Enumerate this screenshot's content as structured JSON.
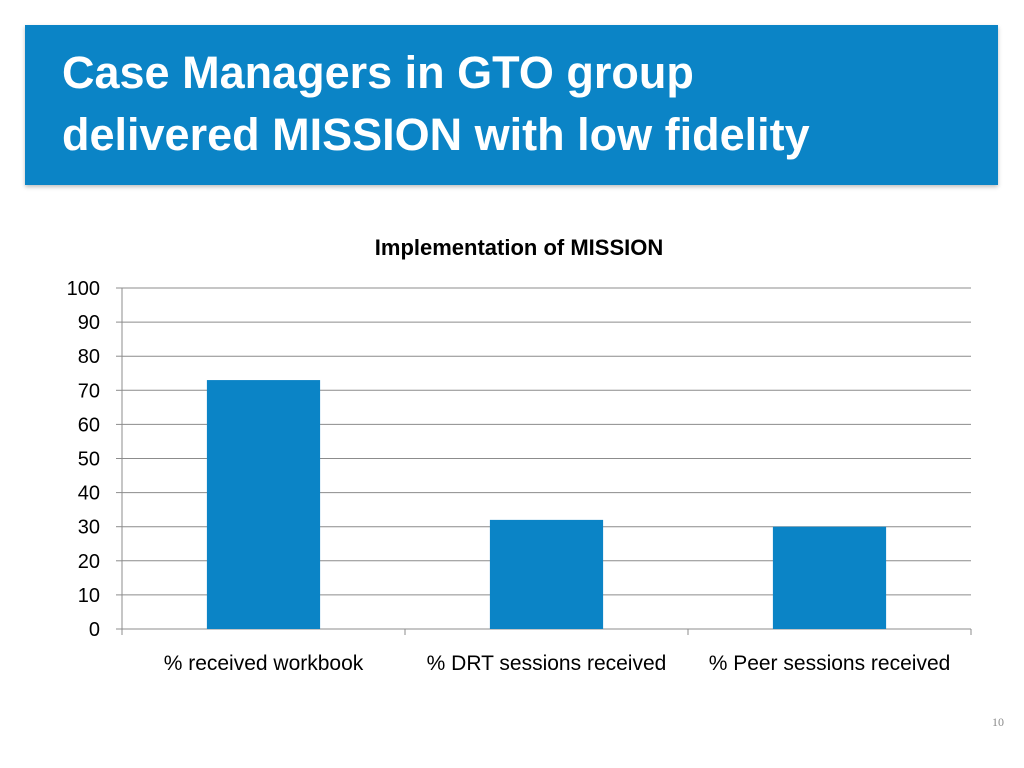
{
  "slide": {
    "title_line1": "Case Managers in GTO group",
    "title_line2": "delivered MISSION with low fidelity",
    "page_number": "10"
  },
  "colors": {
    "banner": "#0b84c6",
    "bar": "#0b84c6",
    "grid": "#8c8c8c",
    "text": "#000000"
  },
  "chart_data": {
    "type": "bar",
    "title": "Implementation of MISSION",
    "xlabel": "",
    "ylabel": "",
    "categories": [
      "% received workbook",
      "% DRT sessions received",
      "% Peer sessions received"
    ],
    "values": [
      73,
      32,
      30
    ],
    "ylim": [
      0,
      100
    ],
    "yticks": [
      0,
      10,
      20,
      30,
      40,
      50,
      60,
      70,
      80,
      90,
      100
    ],
    "grid": true,
    "legend": "none"
  }
}
